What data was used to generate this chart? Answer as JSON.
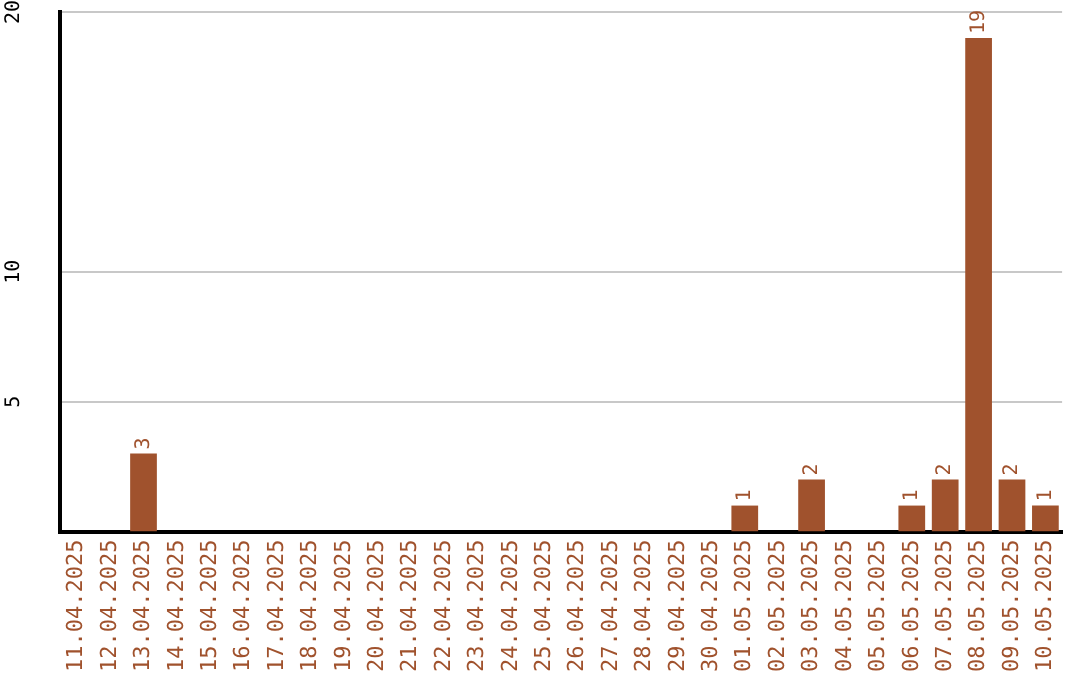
{
  "chart_data": {
    "type": "bar",
    "categories": [
      "11.04.2025",
      "12.04.2025",
      "13.04.2025",
      "14.04.2025",
      "15.04.2025",
      "16.04.2025",
      "17.04.2025",
      "18.04.2025",
      "19.04.2025",
      "20.04.2025",
      "21.04.2025",
      "22.04.2025",
      "23.04.2025",
      "24.04.2025",
      "25.04.2025",
      "26.04.2025",
      "27.04.2025",
      "28.04.2025",
      "29.04.2025",
      "30.04.2025",
      "01.05.2025",
      "02.05.2025",
      "03.05.2025",
      "04.05.2025",
      "05.05.2025",
      "06.05.2025",
      "07.05.2025",
      "08.05.2025",
      "09.05.2025",
      "10.05.2025"
    ],
    "values": [
      0,
      0,
      3,
      0,
      0,
      0,
      0,
      0,
      0,
      0,
      0,
      0,
      0,
      0,
      0,
      0,
      0,
      0,
      0,
      0,
      1,
      0,
      2,
      0,
      0,
      1,
      2,
      19,
      2,
      1
    ],
    "value_labels": [
      null,
      null,
      "3",
      null,
      null,
      null,
      null,
      null,
      null,
      null,
      null,
      null,
      null,
      null,
      null,
      null,
      null,
      null,
      null,
      null,
      "1",
      null,
      "2",
      null,
      null,
      "1",
      "2",
      "19",
      "2",
      "1"
    ],
    "color": "#a0522d",
    "ylim": [
      0,
      20
    ],
    "yticks": [
      5,
      10,
      20
    ],
    "grid": "y"
  }
}
